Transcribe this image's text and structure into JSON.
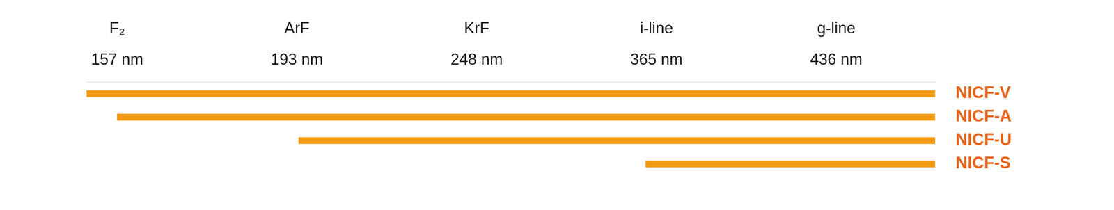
{
  "chart_data": {
    "type": "bar",
    "orientation": "horizontal",
    "categories": [
      "NICF-V",
      "NICF-A",
      "NICF-U",
      "NICF-S"
    ],
    "values": [
      [
        -0.17,
        4.55
      ],
      [
        0,
        4.55
      ],
      [
        1.01,
        4.55
      ],
      [
        2.94,
        4.55
      ]
    ],
    "color": "#f29a14",
    "xlim": [
      -0.17,
      4.55
    ],
    "xticks": [
      {
        "value": 0,
        "label": [
          "F₂",
          "157 nm"
        ]
      },
      {
        "value": 1,
        "label": [
          "ArF",
          "193 nm"
        ]
      },
      {
        "value": 2,
        "label": [
          "KrF",
          "248 nm"
        ]
      },
      {
        "value": 3,
        "label": [
          "i-line",
          "365 nm"
        ]
      },
      {
        "value": 4,
        "label": [
          "g-line",
          "436 nm"
        ]
      }
    ],
    "grid": false
  }
}
